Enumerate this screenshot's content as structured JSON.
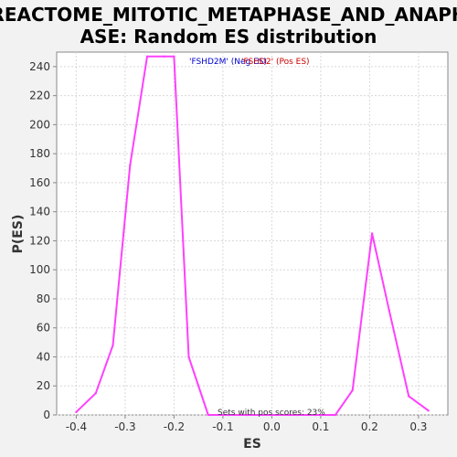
{
  "chart_data": {
    "type": "line",
    "title_line1": "REACTOME_MITOTIC_METAPHASE_AND_ANAPH",
    "title_line2": "ASE: Random ES distribution",
    "xlabel": "ES",
    "ylabel": "P(ES)",
    "xlim": [
      -0.44,
      0.36
    ],
    "ylim": [
      0,
      250
    ],
    "x_ticks": [
      -0.4,
      -0.3,
      -0.2,
      -0.1,
      0.0,
      0.1,
      0.2,
      0.3
    ],
    "x_tick_labels": [
      "-0.4",
      "-0.3",
      "-0.2",
      "-0.1",
      "0.0",
      "0.1",
      "0.2",
      "0.3"
    ],
    "y_ticks": [
      0,
      20,
      40,
      60,
      80,
      100,
      120,
      140,
      160,
      180,
      200,
      220,
      240
    ],
    "y_tick_labels": [
      "0",
      "20",
      "40",
      "60",
      "80",
      "100",
      "120",
      "140",
      "160",
      "180",
      "200",
      "220",
      "240"
    ],
    "grid": true,
    "series": [
      {
        "color": "#ff40ff",
        "x": [
          -0.4,
          -0.36,
          -0.325,
          -0.29,
          -0.255,
          -0.22,
          -0.2,
          -0.17,
          -0.13,
          -0.09,
          -0.05,
          0.0,
          0.05,
          0.09,
          0.13,
          0.165,
          0.205,
          0.24,
          0.28,
          0.32
        ],
        "y": [
          2,
          15,
          48,
          172,
          247,
          247,
          247,
          40,
          0,
          0,
          0,
          0,
          0,
          0,
          0,
          17,
          125,
          72,
          13,
          3
        ]
      }
    ],
    "annotations": [
      {
        "text": "'FSHD2M' (Neg ES)",
        "color": "#0000cc"
      },
      {
        "text": "'FSHD2' (Pos ES)",
        "color": "#cc0000"
      },
      {
        "text": "Sets with pos scores: 23%",
        "color": "#333333"
      }
    ]
  }
}
